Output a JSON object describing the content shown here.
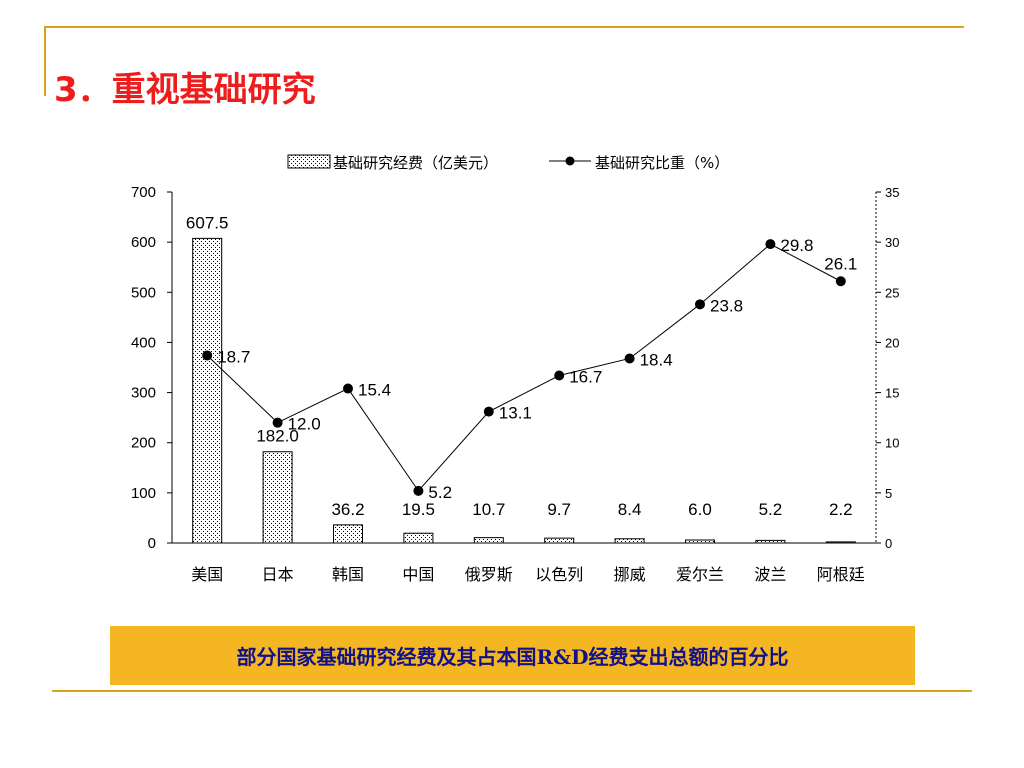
{
  "slide": {
    "title": "3．重视基础研究",
    "caption": "部分国家基础研究经费及其占本国R&D经费支出总额的百分比"
  },
  "colors": {
    "title": "#ee1c1c",
    "accent_rule": "#d9a21a",
    "caption_bg": "#f4b622",
    "caption_text": "#111188"
  },
  "chart_data": {
    "type": "bar",
    "categories": [
      "美国",
      "日本",
      "韩国",
      "中国",
      "俄罗斯",
      "以色列",
      "挪威",
      "爱尔兰",
      "波兰",
      "阿根廷"
    ],
    "series": [
      {
        "name": "基础研究经费（亿美元）",
        "type": "bar",
        "axis": "left",
        "values": [
          607.5,
          182.0,
          36.2,
          19.5,
          10.7,
          9.7,
          8.4,
          6.0,
          5.2,
          2.2
        ],
        "labels": [
          "607.5",
          "182.0",
          "36.2",
          "19.5",
          "10.7",
          "9.7",
          "8.4",
          "6.0",
          "5.2",
          "2.2"
        ]
      },
      {
        "name": "基础研究比重（%）",
        "type": "line",
        "axis": "right",
        "values": [
          18.7,
          12.0,
          15.4,
          5.2,
          13.1,
          16.7,
          18.4,
          23.8,
          29.8,
          26.1
        ],
        "labels": [
          "18.7",
          "12.0",
          "15.4",
          "5.2",
          "13.1",
          "16.7",
          "18.4",
          "23.8",
          "29.8",
          "26.1"
        ]
      }
    ],
    "ylim": [
      0,
      700
    ],
    "yticks": [
      "0",
      "100",
      "200",
      "300",
      "400",
      "500",
      "600",
      "700"
    ],
    "y2lim": [
      0,
      35
    ],
    "y2ticks": [
      "0",
      "5",
      "10",
      "15",
      "20",
      "25",
      "30",
      "35"
    ],
    "legend_position": "top",
    "grid": false
  }
}
